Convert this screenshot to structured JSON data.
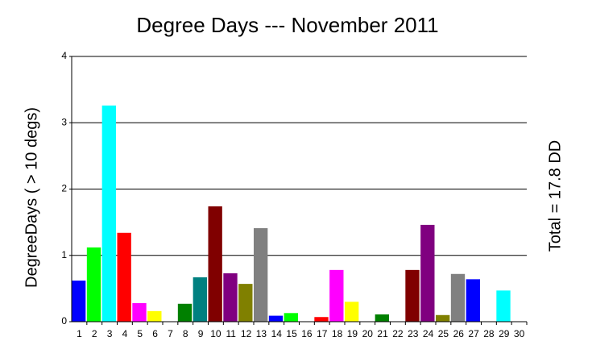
{
  "chart_data": {
    "type": "bar",
    "title": "Degree Days --- November 2011",
    "y_label": "DegreeDays ( > 10 degs)",
    "annotation": "Total = 17.8 DD",
    "categories": [
      "1",
      "2",
      "3",
      "4",
      "5",
      "6",
      "7",
      "8",
      "9",
      "10",
      "11",
      "12",
      "13",
      "14",
      "15",
      "16",
      "17",
      "18",
      "19",
      "20",
      "21",
      "22",
      "23",
      "24",
      "25",
      "26",
      "27",
      "28",
      "29",
      "30"
    ],
    "values": [
      0.62,
      1.12,
      3.26,
      1.34,
      0.28,
      0.16,
      0,
      0.27,
      0.67,
      1.74,
      0.73,
      0.57,
      1.41,
      0.09,
      0.13,
      0,
      0.07,
      0.78,
      0.3,
      0,
      0.11,
      0,
      0.78,
      1.46,
      0.1,
      0.72,
      0.64,
      0,
      0.47,
      0
    ],
    "colors": [
      "#0000ff",
      "#00ff00",
      "#00ffff",
      "#ff0000",
      "#ff00ff",
      "#ffff00",
      "#ffffff",
      "#008000",
      "#008080",
      "#800000",
      "#800080",
      "#808000",
      "#808080",
      "#0000ff",
      "#00ff00",
      "#00ffff",
      "#ff0000",
      "#ff00ff",
      "#ffff00",
      "#ffffff",
      "#008000",
      "#008080",
      "#800000",
      "#800080",
      "#808000",
      "#808080",
      "#0000ff",
      "#00ff00",
      "#00ffff",
      "#ff0000"
    ],
    "ylim": [
      0,
      4
    ],
    "yticks": [
      0,
      1,
      2,
      3,
      4
    ],
    "grid": true
  }
}
